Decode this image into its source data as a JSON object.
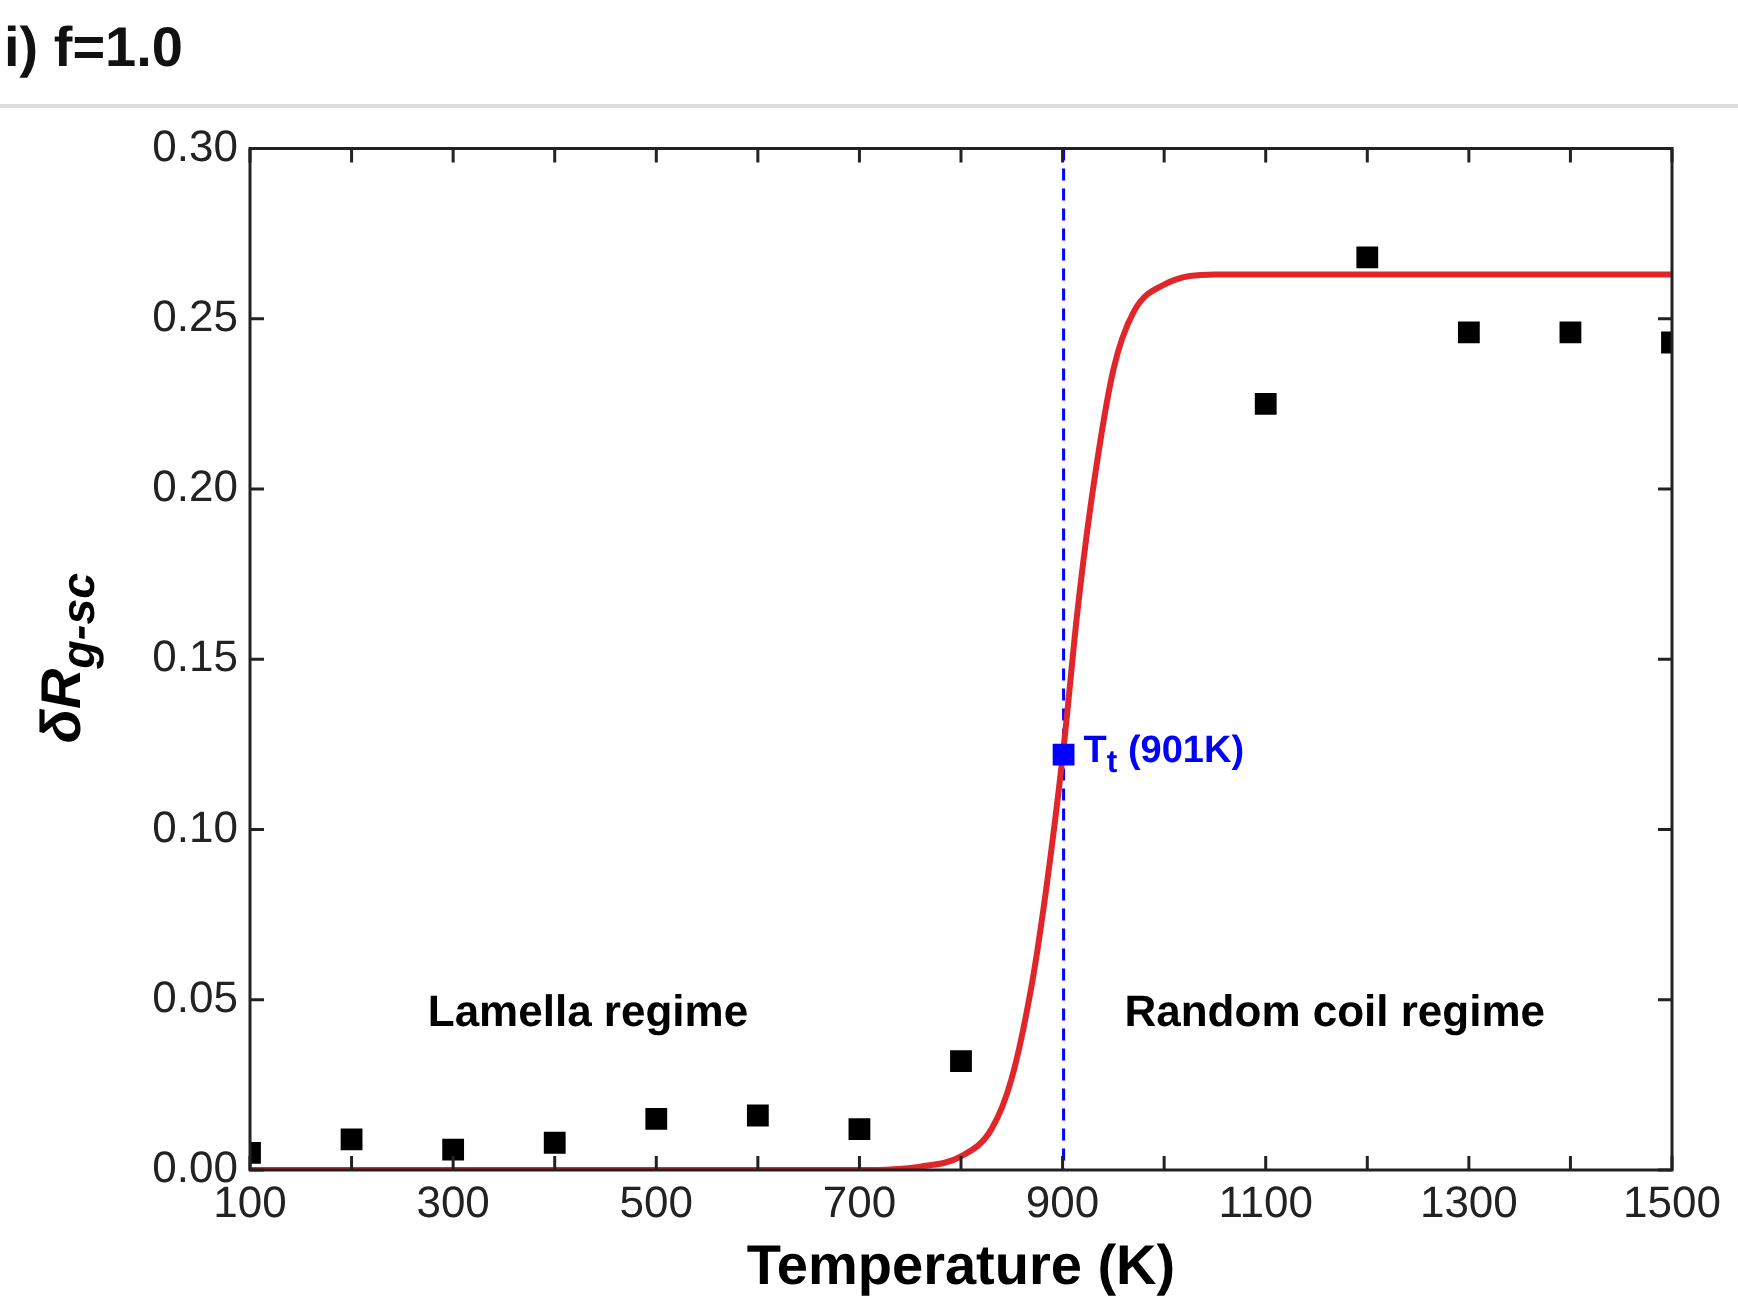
{
  "chart_data": {
    "type": "scatter",
    "title": "i) f=1.0",
    "xlabel": "Temperature (K)",
    "ylabel": "δR$_{g-sc}$",
    "xlim": [
      100,
      1500
    ],
    "xticks": [
      100,
      {
        "value": 200,
        "label": null
      },
      300,
      {
        "value": 400,
        "label": null
      },
      500,
      {
        "value": 600,
        "label": null
      },
      700,
      {
        "value": 800,
        "label": null
      },
      900,
      {
        "value": 1000,
        "label": null
      },
      1100,
      {
        "value": 1200,
        "label": null
      },
      1300,
      {
        "value": 1400,
        "label": null
      },
      1500
    ],
    "ylim": [
      0,
      0.3
    ],
    "yticks": [
      {
        "value": 0,
        "label": "0.00"
      },
      {
        "value": 0.05,
        "label": "0.05"
      },
      {
        "value": 0.1,
        "label": "0.10"
      },
      {
        "value": 0.15,
        "label": "0.15"
      },
      {
        "value": 0.2,
        "label": "0.20"
      },
      {
        "value": 0.25,
        "label": "0.25"
      },
      {
        "value": 0.3,
        "label": "0.30"
      }
    ],
    "grid": false,
    "legend": false,
    "marker": "square",
    "series": [
      {
        "color": "#000000",
        "x": [
          100,
          200,
          300,
          400,
          500,
          600,
          700,
          800,
          1100,
          1200,
          1300,
          1400,
          1500
        ],
        "values": [
          0.005,
          0.009,
          0.006,
          0.008,
          0.015,
          0.016,
          0.012,
          0.032,
          0.225,
          0.268,
          0.246,
          0.246,
          0.243
        ]
      },
      {
        "type": "line",
        "color": "#e0262a",
        "marker": "none",
        "line_style": "solid",
        "x": [
          100,
          700,
          760,
          800,
          830,
          850,
          870,
          885,
          901,
          915,
          930,
          950,
          970,
          1000,
          1050,
          1500
        ],
        "values": [
          0,
          0,
          0.001,
          0.004,
          0.012,
          0.027,
          0.055,
          0.085,
          0.124,
          0.165,
          0.2,
          0.235,
          0.252,
          0.26,
          0.263,
          0.263
        ]
      },
      {
        "color": "#0000ff",
        "x": [
          901
        ],
        "values": [
          0.122
        ]
      }
    ],
    "ref_lines": [
      {
        "axis": "x",
        "value": 901,
        "color": "#0000ff",
        "line_style": "dashed"
      }
    ],
    "annotations": [
      {
        "text": "T$_{t}$ (901K)",
        "x": 901,
        "y": 0.122
      },
      "Lamella regime",
      "Random coil regime"
    ]
  }
}
